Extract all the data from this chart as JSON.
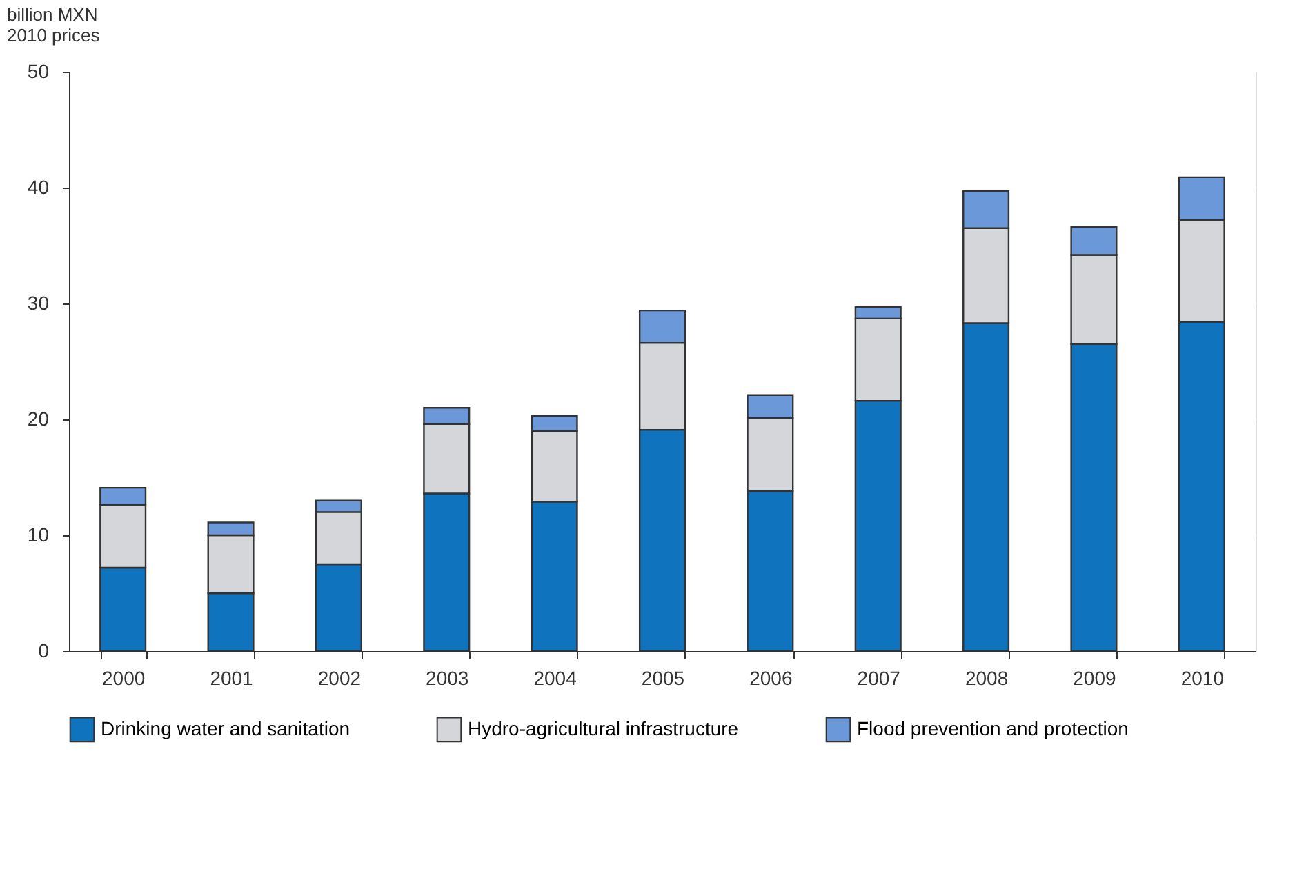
{
  "chart_data": {
    "type": "bar",
    "stacked": true,
    "ylabel": "billion MXN\n2010 prices",
    "categories": [
      "2000",
      "2001",
      "2002",
      "2003",
      "2004",
      "2005",
      "2006",
      "2007",
      "2008",
      "2009",
      "2010"
    ],
    "series": [
      {
        "name": "Drinking water and sanitation",
        "color": "#0f74bd",
        "values": [
          7.2,
          5.0,
          7.5,
          13.6,
          12.9,
          19.1,
          13.8,
          21.6,
          28.3,
          26.5,
          28.4
        ]
      },
      {
        "name": "Hydro-agricultural infrastructure",
        "color": "#d4d6d9",
        "values": [
          5.4,
          5.0,
          4.5,
          6.0,
          6.1,
          7.5,
          6.3,
          7.1,
          8.2,
          7.7,
          8.8
        ]
      },
      {
        "name": "Flood prevention and protection",
        "color": "#6a98d8",
        "values": [
          1.5,
          1.1,
          1.0,
          1.4,
          1.3,
          2.8,
          2.0,
          1.0,
          3.2,
          2.4,
          3.7
        ]
      }
    ],
    "ylim": [
      0,
      50
    ],
    "yticks": [
      0,
      10,
      20,
      30,
      40,
      50
    ],
    "grid": true,
    "legend": "bottom"
  }
}
